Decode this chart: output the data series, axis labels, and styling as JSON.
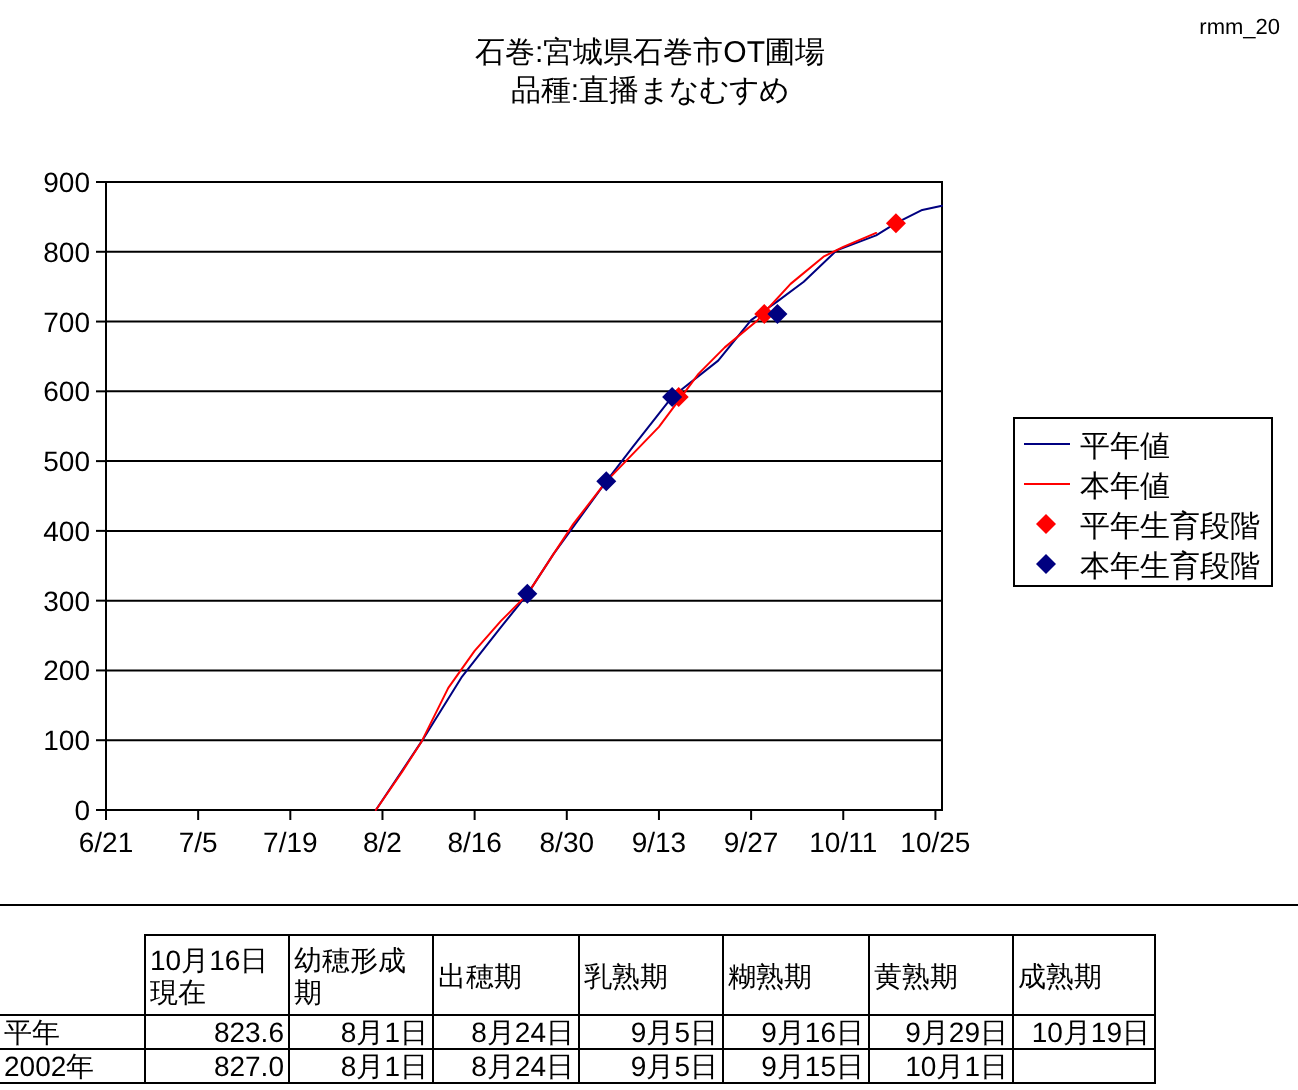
{
  "chart_data": {
    "type": "line",
    "title": "石巻:宮城県石巻市OT圃場",
    "subtitle": "品種:直播まなむすめ",
    "xlim": [
      "--06-21",
      "--10-26"
    ],
    "xticks": [
      {
        "value": "--06-21",
        "label": "6/21"
      },
      {
        "value": "--07-05",
        "label": "7/5"
      },
      {
        "value": "--07-19",
        "label": "7/19"
      },
      {
        "value": "--08-02",
        "label": "8/2"
      },
      {
        "value": "--08-16",
        "label": "8/16"
      },
      {
        "value": "--08-30",
        "label": "8/30"
      },
      {
        "value": "--09-13",
        "label": "9/13"
      },
      {
        "value": "--09-27",
        "label": "9/27"
      },
      {
        "value": "--10-11",
        "label": "10/11"
      },
      {
        "value": "--10-25",
        "label": "10/25"
      }
    ],
    "ylim": [
      0,
      900
    ],
    "yticks": [
      0,
      100,
      200,
      300,
      400,
      500,
      600,
      700,
      800,
      900
    ],
    "grid": "y",
    "legend": "right",
    "series": [
      {
        "name": "平年値",
        "type": "line",
        "color": "#000080",
        "x": [
          "--08-01",
          "--08-08",
          "--08-14",
          "--08-20",
          "--08-24",
          "--08-28",
          "--09-05",
          "--09-09",
          "--09-15",
          "--09-22",
          "--09-27",
          "--10-01",
          "--10-05",
          "--10-10",
          "--10-16",
          "--10-19",
          "--10-23",
          "--10-26"
        ],
        "values": [
          0,
          99,
          190,
          262,
          309,
          367,
          471,
          520,
          592,
          644,
          702,
          729,
          757,
          802,
          823.6,
          841,
          860,
          866
        ]
      },
      {
        "name": "本年値",
        "type": "line",
        "color": "#ff0000",
        "x": [
          "--08-01",
          "--08-05",
          "--08-08",
          "--08-12",
          "--08-16",
          "--08-20",
          "--08-24",
          "--08-28",
          "--08-31",
          "--09-05",
          "--09-13",
          "--09-16",
          "--09-19",
          "--09-23",
          "--09-28",
          "--09-29",
          "--10-03",
          "--10-08",
          "--10-11",
          "--10-16"
        ],
        "values": [
          0,
          55,
          99,
          175,
          228,
          271,
          309,
          367,
          410,
          471,
          549,
          587,
          625,
          663,
          702,
          713,
          754,
          793,
          807,
          827.0
        ]
      },
      {
        "name": "平年生育段階",
        "type": "scatter",
        "marker": "diamond",
        "color": "#ff0000",
        "x": [
          "--09-16",
          "--09-29",
          "--10-19"
        ],
        "values": [
          592,
          711,
          841
        ]
      },
      {
        "name": "本年生育段階",
        "type": "scatter",
        "marker": "diamond",
        "color": "#000080",
        "x": [
          "--08-24",
          "--09-05",
          "--09-15",
          "--10-01"
        ],
        "values": [
          310,
          471,
          592,
          711
        ]
      }
    ],
    "annotations": [
      "rmm_20",
      "10月16日現在",
      "幼穂形成期",
      "出穂期",
      "乳熟期",
      "糊熟期",
      "黄熟期",
      "成熟期",
      "平年",
      "823.6",
      "8月1日",
      "8月24日",
      "9月5日",
      "9月16日",
      "9月29日",
      "10月19日",
      "2002年",
      "827.0",
      "8月1日",
      "8月24日",
      "9月5日",
      "9月15日",
      "10月1日"
    ]
  }
}
